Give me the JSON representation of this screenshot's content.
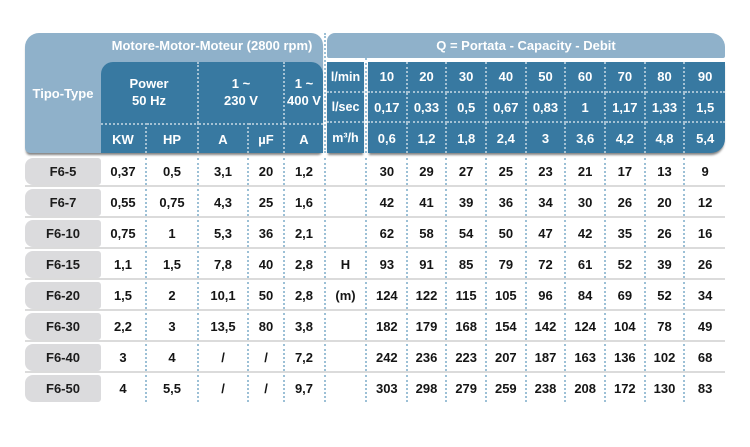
{
  "colors": {
    "header_light_blue": "#8FB1CA",
    "header_teal": "#3879A1",
    "row_label_gray": "#DBDBDD",
    "dotted_separator_blue": "#9CC0D6",
    "row_separator_gray": "#C9C9C9",
    "header_text": "#FFFFFF",
    "data_text": "#151515"
  },
  "table": {
    "motor_header": {
      "title": "Motore-Motor-Moteur (2800 rpm)",
      "tipo_label": "Tipo-Type",
      "groups": [
        {
          "line1": "Power",
          "line2": "50 Hz"
        },
        {
          "line1": "1 ~",
          "line2": "230 V"
        },
        {
          "line1": "1 ~",
          "line2": "400 V"
        }
      ],
      "unit_cols": [
        "KW",
        "HP",
        "A",
        "µF",
        "A"
      ]
    },
    "capacity_header": {
      "title": "Q = Portata - Capacity - Debit",
      "rows": [
        {
          "label": "l/min",
          "values": [
            "10",
            "20",
            "30",
            "40",
            "50",
            "60",
            "70",
            "80",
            "90"
          ]
        },
        {
          "label": "l/sec",
          "values": [
            "0,17",
            "0,33",
            "0,5",
            "0,67",
            "0,83",
            "1",
            "1,17",
            "1,33",
            "1,5"
          ]
        },
        {
          "label": "m³/h",
          "values": [
            "0,6",
            "1,2",
            "1,8",
            "2,4",
            "3",
            "3,6",
            "4,2",
            "4,8",
            "5,4"
          ]
        }
      ]
    },
    "head_unit": {
      "line1": "H",
      "line2": "(m)"
    },
    "rows": [
      {
        "type": "F6-5",
        "kw": "0,37",
        "hp": "0,5",
        "a230": "3,1",
        "uf": "20",
        "a400": "1,2",
        "head": [
          "30",
          "29",
          "27",
          "25",
          "23",
          "21",
          "17",
          "13",
          "9"
        ]
      },
      {
        "type": "F6-7",
        "kw": "0,55",
        "hp": "0,75",
        "a230": "4,3",
        "uf": "25",
        "a400": "1,6",
        "head": [
          "42",
          "41",
          "39",
          "36",
          "34",
          "30",
          "26",
          "20",
          "12"
        ]
      },
      {
        "type": "F6-10",
        "kw": "0,75",
        "hp": "1",
        "a230": "5,3",
        "uf": "36",
        "a400": "2,1",
        "head": [
          "62",
          "58",
          "54",
          "50",
          "47",
          "42",
          "35",
          "26",
          "16"
        ]
      },
      {
        "type": "F6-15",
        "kw": "1,1",
        "hp": "1,5",
        "a230": "7,8",
        "uf": "40",
        "a400": "2,8",
        "head": [
          "93",
          "91",
          "85",
          "79",
          "72",
          "61",
          "52",
          "39",
          "26"
        ]
      },
      {
        "type": "F6-20",
        "kw": "1,5",
        "hp": "2",
        "a230": "10,1",
        "uf": "50",
        "a400": "2,8",
        "head": [
          "124",
          "122",
          "115",
          "105",
          "96",
          "84",
          "69",
          "52",
          "34"
        ]
      },
      {
        "type": "F6-30",
        "kw": "2,2",
        "hp": "3",
        "a230": "13,5",
        "uf": "80",
        "a400": "3,8",
        "head": [
          "182",
          "179",
          "168",
          "154",
          "142",
          "124",
          "104",
          "78",
          "49"
        ]
      },
      {
        "type": "F6-40",
        "kw": "3",
        "hp": "4",
        "a230": "/",
        "uf": "/",
        "a400": "7,2",
        "head": [
          "242",
          "236",
          "223",
          "207",
          "187",
          "163",
          "136",
          "102",
          "68"
        ]
      },
      {
        "type": "F6-50",
        "kw": "4",
        "hp": "5,5",
        "a230": "/",
        "uf": "/",
        "a400": "9,7",
        "head": [
          "303",
          "298",
          "279",
          "259",
          "238",
          "208",
          "172",
          "130",
          "83"
        ]
      }
    ]
  }
}
